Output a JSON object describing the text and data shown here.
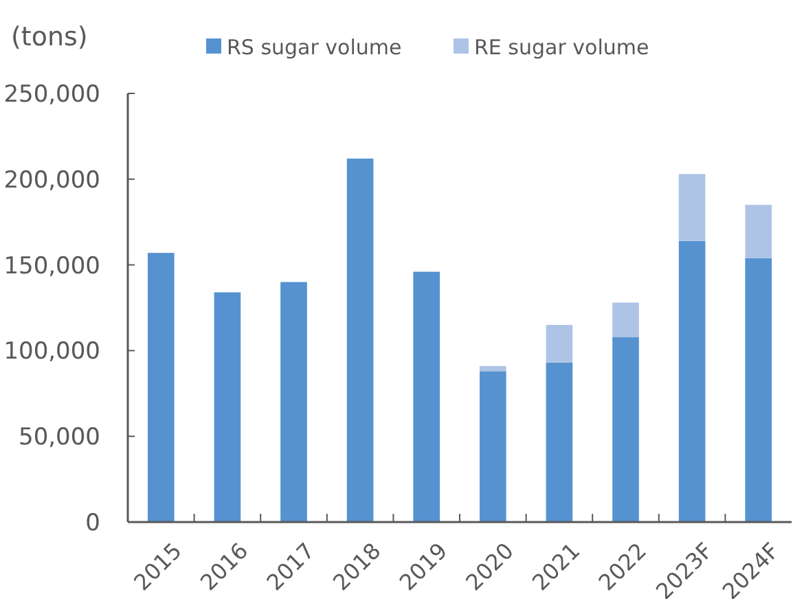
{
  "chart_data": {
    "type": "bar",
    "ylabel": "(tons)",
    "stacked": true,
    "legend": "top",
    "grid": false,
    "categories": [
      "2015",
      "2016",
      "2017",
      "2018",
      "2019",
      "2020",
      "2021",
      "2022",
      "2023F",
      "2024F"
    ],
    "series": [
      {
        "name": "RS sugar volume",
        "color": "#5692d0",
        "values": [
          157000,
          134000,
          140000,
          212000,
          146000,
          88000,
          93000,
          108000,
          164000,
          154000
        ]
      },
      {
        "name": "RE sugar volume",
        "color": "#aec4e6",
        "values": [
          null,
          null,
          null,
          null,
          null,
          3000,
          22000,
          20000,
          39000,
          31000
        ]
      }
    ],
    "ylim": [
      0,
      250000
    ],
    "yticks": [
      {
        "value": 0,
        "label": "0"
      },
      {
        "value": 50000,
        "label": "50,000"
      },
      {
        "value": 100000,
        "label": "100,000"
      },
      {
        "value": 150000,
        "label": "150,000"
      },
      {
        "value": 200000,
        "label": "200,000"
      },
      {
        "value": 250000,
        "label": "250,000"
      }
    ]
  }
}
